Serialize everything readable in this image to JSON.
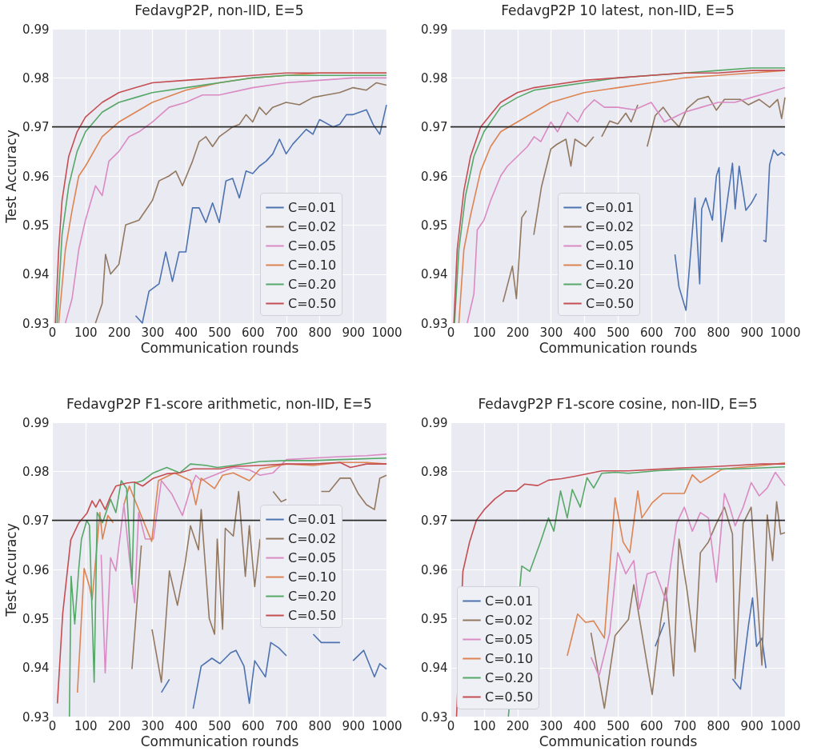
{
  "chart_data": [
    {
      "type": "line",
      "title": "FedavgP2P, non-IID, E=5",
      "xlabel": "Communication rounds",
      "ylabel": "Test Accuracy",
      "xlim": [
        0,
        1000
      ],
      "ylim": [
        0.93,
        0.99
      ],
      "xticks": [
        0,
        100,
        200,
        300,
        400,
        500,
        600,
        700,
        800,
        900,
        1000
      ],
      "yticks": [
        0.93,
        0.94,
        0.95,
        0.96,
        0.97,
        0.98,
        0.99
      ],
      "grid": true,
      "legend": "bottom right",
      "ref_lines": [
        {
          "axis": "y",
          "value": 0.97,
          "color": "#262626"
        }
      ],
      "series": [
        {
          "name": "C=0.01",
          "color": "#4c72b0",
          "x": [
            250,
            270,
            290,
            320,
            340,
            360,
            380,
            400,
            420,
            440,
            460,
            480,
            500,
            520,
            540,
            560,
            580,
            600,
            620,
            640,
            660,
            680,
            700,
            720,
            740,
            760,
            780,
            800,
            840,
            860,
            880,
            900,
            920,
            940,
            960,
            980,
            1000
          ],
          "values": [
            0.9315,
            0.93,
            0.9365,
            0.938,
            0.9445,
            0.9385,
            0.9445,
            0.9445,
            0.9535,
            0.9535,
            0.9505,
            0.9545,
            0.9505,
            0.959,
            0.9595,
            0.9555,
            0.961,
            0.9605,
            0.962,
            0.963,
            0.9645,
            0.9675,
            0.9645,
            0.9665,
            0.968,
            0.9695,
            0.9685,
            0.9715,
            0.97,
            0.9705,
            0.9725,
            0.9725,
            0.973,
            0.9735,
            0.9705,
            0.9685,
            0.9745
          ]
        },
        {
          "name": "C=0.02",
          "color": "#937860",
          "x": [
            130,
            150,
            160,
            175,
            200,
            220,
            260,
            280,
            300,
            320,
            350,
            370,
            390,
            420,
            440,
            460,
            480,
            500,
            520,
            540,
            560,
            580,
            600,
            620,
            640,
            660,
            700,
            740,
            780,
            820,
            860,
            900,
            940,
            970,
            1000
          ],
          "values": [
            0.93,
            0.934,
            0.944,
            0.94,
            0.942,
            0.95,
            0.951,
            0.953,
            0.955,
            0.959,
            0.96,
            0.961,
            0.958,
            0.963,
            0.967,
            0.968,
            0.966,
            0.968,
            0.969,
            0.97,
            0.9705,
            0.9725,
            0.971,
            0.974,
            0.9725,
            0.974,
            0.975,
            0.9745,
            0.976,
            0.9765,
            0.977,
            0.978,
            0.9775,
            0.979,
            0.9785
          ]
        },
        {
          "name": "C=0.05",
          "color": "#da8bc3",
          "x": [
            40,
            60,
            80,
            100,
            130,
            150,
            170,
            200,
            230,
            260,
            300,
            350,
            400,
            450,
            500,
            600,
            700,
            800,
            900,
            1000
          ],
          "values": [
            0.93,
            0.935,
            0.945,
            0.951,
            0.958,
            0.956,
            0.963,
            0.965,
            0.968,
            0.969,
            0.971,
            0.974,
            0.975,
            0.9765,
            0.9765,
            0.978,
            0.979,
            0.9795,
            0.98,
            0.98
          ]
        },
        {
          "name": "C=0.10",
          "color": "#dd8452",
          "x": [
            20,
            40,
            60,
            80,
            100,
            150,
            200,
            250,
            300,
            400,
            500,
            600,
            700,
            800,
            900,
            1000
          ],
          "values": [
            0.93,
            0.945,
            0.953,
            0.96,
            0.962,
            0.968,
            0.971,
            0.973,
            0.975,
            0.9775,
            0.979,
            0.98,
            0.9805,
            0.981,
            0.981,
            0.981
          ]
        },
        {
          "name": "C=0.20",
          "color": "#55a868",
          "x": [
            15,
            30,
            50,
            75,
            100,
            150,
            200,
            250,
            300,
            400,
            500,
            600,
            700,
            800,
            900,
            1000
          ],
          "values": [
            0.93,
            0.948,
            0.958,
            0.965,
            0.969,
            0.973,
            0.975,
            0.976,
            0.977,
            0.978,
            0.979,
            0.98,
            0.9805,
            0.9805,
            0.9805,
            0.9805
          ]
        },
        {
          "name": "C=0.50",
          "color": "#c44e52",
          "x": [
            10,
            20,
            30,
            50,
            75,
            100,
            150,
            200,
            250,
            300,
            400,
            500,
            600,
            700,
            800,
            900,
            1000
          ],
          "values": [
            0.93,
            0.945,
            0.955,
            0.964,
            0.969,
            0.972,
            0.975,
            0.977,
            0.978,
            0.979,
            0.9795,
            0.98,
            0.9805,
            0.981,
            0.981,
            0.981,
            0.981
          ]
        }
      ]
    },
    {
      "type": "line",
      "title": "FedavgP2P 10 latest, non-IID, E=5",
      "xlabel": "Communication rounds",
      "xlim": [
        0,
        1000
      ],
      "ylim": [
        0.93,
        0.99
      ],
      "xticks": [
        0,
        100,
        200,
        300,
        400,
        500,
        600,
        700,
        800,
        900,
        1000
      ],
      "yticks": [
        0.93,
        0.94,
        0.95,
        0.96,
        0.97,
        0.98,
        0.99
      ],
      "grid": true,
      "legend": "bottom",
      "ref_lines": [
        {
          "axis": "y",
          "value": 0.97,
          "color": "#262626"
        }
      ],
      "series": [
        {
          "name": "C=0.01",
          "color": "#4c72b0",
          "x": [
            671,
            683,
            704,
            731,
            745,
            751,
            763,
            783,
            795,
            803,
            811,
            843,
            851,
            863,
            883,
            899,
            915,
            923,
            935,
            943,
            954,
            966,
            978,
            990,
            1000
          ],
          "values": [
            0.944,
            0.9374,
            0.9326,
            0.9555,
            0.938,
            0.9533,
            0.9555,
            0.951,
            0.96,
            0.9617,
            0.9466,
            0.9626,
            0.9533,
            0.962,
            0.953,
            0.9544,
            0.9564,
            null,
            0.9469,
            0.9466,
            0.9623,
            0.9653,
            0.9642,
            0.9648,
            0.9642
          ]
        },
        {
          "name": "C=0.02",
          "color": "#937860",
          "x": [
            157,
            185,
            197,
            213,
            227,
            237,
            249,
            272,
            300,
            317,
            345,
            360,
            372,
            404,
            428,
            436,
            452,
            476,
            500,
            524,
            540,
            560,
            572,
            588,
            612,
            636,
            660,
            683,
            707,
            739,
            771,
            795,
            819,
            867,
            891,
            923,
            954,
            978,
            990,
            1000
          ],
          "values": [
            0.9343,
            0.9416,
            0.935,
            0.9515,
            0.9529,
            null,
            0.948,
            0.9578,
            0.9655,
            0.9664,
            0.9675,
            0.962,
            0.9675,
            0.966,
            0.968,
            null,
            0.968,
            0.9712,
            0.9706,
            0.9728,
            0.971,
            0.9745,
            null,
            0.966,
            0.9723,
            0.974,
            0.9717,
            0.97,
            0.9737,
            0.9756,
            0.9762,
            0.9734,
            0.9756,
            0.9756,
            0.9745,
            0.9756,
            0.974,
            0.9756,
            0.9717,
            0.976
          ]
        },
        {
          "name": "C=0.05",
          "color": "#da8bc3",
          "x": [
            50,
            70,
            80,
            100,
            120,
            150,
            170,
            200,
            230,
            250,
            270,
            300,
            320,
            350,
            380,
            400,
            430,
            460,
            500,
            550,
            600,
            640,
            700,
            750,
            800,
            850,
            900,
            950,
            1000
          ],
          "values": [
            0.93,
            0.936,
            0.949,
            0.951,
            0.955,
            0.96,
            0.962,
            0.964,
            0.966,
            0.968,
            0.967,
            0.971,
            0.969,
            0.973,
            0.971,
            0.9735,
            0.9755,
            0.974,
            0.974,
            0.9735,
            0.975,
            0.971,
            0.973,
            0.974,
            0.975,
            0.975,
            0.976,
            0.977,
            0.978
          ]
        },
        {
          "name": "C=0.10",
          "color": "#dd8452",
          "x": [
            25,
            40,
            60,
            90,
            120,
            150,
            200,
            250,
            300,
            400,
            500,
            600,
            700,
            800,
            900,
            1000
          ],
          "values": [
            0.93,
            0.945,
            0.952,
            0.961,
            0.966,
            0.969,
            0.971,
            0.973,
            0.975,
            0.977,
            0.978,
            0.979,
            0.98,
            0.9805,
            0.981,
            0.9815
          ]
        },
        {
          "name": "C=0.20",
          "color": "#55a868",
          "x": [
            12,
            25,
            45,
            70,
            100,
            150,
            200,
            250,
            300,
            400,
            500,
            600,
            700,
            800,
            900,
            1000
          ],
          "values": [
            0.93,
            0.945,
            0.956,
            0.964,
            0.969,
            0.974,
            0.976,
            0.9775,
            0.978,
            0.979,
            0.98,
            0.9805,
            0.981,
            0.9815,
            0.982,
            0.982
          ]
        },
        {
          "name": "C=0.50",
          "color": "#c44e52",
          "x": [
            10,
            20,
            40,
            60,
            90,
            120,
            150,
            200,
            250,
            300,
            400,
            500,
            600,
            700,
            800,
            900,
            1000
          ],
          "values": [
            0.93,
            0.945,
            0.957,
            0.964,
            0.97,
            0.9725,
            0.975,
            0.977,
            0.978,
            0.9785,
            0.9795,
            0.98,
            0.9805,
            0.981,
            0.981,
            0.9815,
            0.9815
          ]
        }
      ]
    },
    {
      "type": "line",
      "title": "FedavgP2P F1-score arithmetic, non-IID, E=5",
      "xlabel": "Communication rounds",
      "ylabel": "Test Accuracy",
      "xlim": [
        0,
        1000
      ],
      "ylim": [
        0.93,
        0.99
      ],
      "xticks": [
        0,
        100,
        200,
        300,
        400,
        500,
        600,
        700,
        800,
        900,
        1000
      ],
      "yticks": [
        0.93,
        0.94,
        0.95,
        0.96,
        0.97,
        0.98,
        0.99
      ],
      "grid": true,
      "legend": "right",
      "ref_lines": [
        {
          "axis": "y",
          "value": 0.97,
          "color": "#262626"
        }
      ],
      "series": [
        {
          "name": "C=0.01",
          "color": "#4c72b0",
          "x": [
            327,
            351,
            380,
            422,
            446,
            478,
            502,
            534,
            550,
            574,
            590,
            606,
            638,
            654,
            678,
            701,
            725,
            765,
            781,
            805,
            861,
            877,
            900,
            932,
            964,
            980,
            1000
          ],
          "values": [
            0.9349,
            0.9376,
            null,
            0.9316,
            0.9403,
            0.9419,
            0.9408,
            0.943,
            0.9435,
            0.9403,
            0.9327,
            0.9414,
            0.9381,
            0.9451,
            0.944,
            0.9424,
            null,
            null,
            0.9468,
            0.9451,
            0.9451,
            null,
            0.9414,
            0.9435,
            0.9381,
            0.9408,
            0.9397
          ]
        },
        {
          "name": "C=0.02",
          "color": "#937860",
          "x": [
            239,
            267,
            279,
            299,
            327,
            351,
            375,
            398,
            414,
            438,
            446,
            470,
            486,
            494,
            510,
            518,
            542,
            558,
            578,
            590,
            606,
            622,
            650,
            661,
            685,
            701,
            717,
            805,
            829,
            861,
            892,
            916,
            940,
            964,
            980,
            1000
          ],
          "values": [
            0.9397,
            0.9649,
            null,
            0.9478,
            0.937,
            0.9597,
            0.9527,
            0.9613,
            0.9689,
            0.964,
            0.9722,
            0.95,
            0.9468,
            0.9662,
            0.9478,
            0.9684,
            0.9668,
            0.9759,
            0.9586,
            0.9689,
            0.9565,
            0.9662,
            null,
            0.9759,
            0.9738,
            0.9743,
            null,
            0.9759,
            0.9759,
            0.9786,
            0.9786,
            0.9754,
            0.9732,
            0.9722,
            0.9786,
            0.9792
          ]
        },
        {
          "name": "C=0.05",
          "color": "#da8bc3",
          "x": [
            147,
            159,
            175,
            191,
            215,
            231,
            247,
            259,
            279,
            303,
            327,
            358,
            390,
            414,
            430,
            446,
            462,
            502,
            542,
            590,
            622,
            661,
            701,
            781,
            861,
            940,
            1000
          ],
          "values": [
            0.963,
            0.9389,
            0.9624,
            0.9597,
            0.9732,
            0.9624,
            0.9532,
            0.9716,
            0.9662,
            0.9662,
            0.9781,
            0.9754,
            0.971,
            0.9765,
            0.9792,
            0.9781,
            0.9786,
            0.9797,
            0.9808,
            0.9803,
            0.9792,
            0.9797,
            0.9824,
            0.9827,
            0.983,
            0.9832,
            0.9835
          ]
        },
        {
          "name": "C=0.10",
          "color": "#dd8452",
          "x": [
            76,
            96,
            112,
            120,
            143,
            151,
            167,
            183,
            199,
            215,
            231,
            298,
            318,
            366,
            414,
            430,
            446,
            486,
            510,
            542,
            590,
            622,
            701,
            781,
            861,
            940,
            1000
          ],
          "values": [
            0.9349,
            0.9602,
            0.9565,
            0.9538,
            0.9716,
            0.9662,
            0.971,
            0.9695,
            null,
            0.9732,
            0.977,
            0.9657,
            0.9781,
            0.9797,
            0.9781,
            0.9732,
            0.9786,
            0.9765,
            0.9792,
            0.9797,
            0.9781,
            0.9805,
            0.9815,
            0.9812,
            0.9818,
            0.9818,
            0.9815
          ]
        },
        {
          "name": "C=0.20",
          "color": "#55a868",
          "x": [
            52,
            57,
            68,
            80,
            88,
            104,
            112,
            126,
            135,
            151,
            175,
            191,
            207,
            223,
            239,
            247,
            271,
            303,
            343,
            382,
            414,
            462,
            494,
            542,
            622,
            701,
            781,
            861,
            1000
          ],
          "values": [
            0.93,
            0.9586,
            0.9489,
            0.9602,
            0.9662,
            0.97,
            0.969,
            0.937,
            0.9716,
            0.9695,
            0.9743,
            0.9716,
            0.9781,
            0.9765,
            0.957,
            0.9776,
            0.9781,
            0.9797,
            0.9808,
            0.9797,
            0.9815,
            0.9812,
            0.9808,
            0.9812,
            0.982,
            0.9822,
            0.9822,
            0.9824,
            0.9827
          ]
        },
        {
          "name": "C=0.50",
          "color": "#c44e52",
          "x": [
            16,
            32,
            56,
            80,
            104,
            120,
            131,
            143,
            159,
            175,
            191,
            223,
            247,
            271,
            303,
            343,
            382,
            422,
            462,
            502,
            542,
            622,
            701,
            781,
            861,
            892,
            940,
            1000
          ],
          "values": [
            0.9327,
            0.951,
            0.966,
            0.9695,
            0.9714,
            0.974,
            0.9727,
            0.9743,
            0.9722,
            0.9749,
            0.977,
            0.9776,
            0.9778,
            0.977,
            0.9786,
            0.9795,
            0.9797,
            0.9805,
            0.9805,
            0.9805,
            0.981,
            0.9812,
            0.9815,
            0.9815,
            0.9818,
            0.9808,
            0.9815,
            0.9815
          ]
        }
      ]
    },
    {
      "type": "line",
      "title": "FedavgP2P F1-score cosine, non-IID, E=5",
      "xlabel": "Communication rounds",
      "xlim": [
        0,
        1000
      ],
      "ylim": [
        0.93,
        0.99
      ],
      "xticks": [
        0,
        100,
        200,
        300,
        400,
        500,
        600,
        700,
        800,
        900,
        1000
      ],
      "yticks": [
        0.93,
        0.94,
        0.95,
        0.96,
        0.97,
        0.98,
        0.99
      ],
      "grid": true,
      "legend": "bottom left",
      "ref_lines": [
        {
          "axis": "y",
          "value": 0.97,
          "color": "#262626"
        }
      ],
      "series": [
        {
          "name": "C=0.01",
          "color": "#4c72b0",
          "x": [
            612,
            640,
            655,
            800,
            843,
            867,
            891,
            903,
            915,
            931,
            943
          ],
          "values": [
            0.9443,
            0.9492,
            null,
            null,
            0.9377,
            0.9356,
            0.9487,
            0.9542,
            0.9443,
            0.946,
            0.9399
          ]
        },
        {
          "name": "C=0.02",
          "color": "#937860",
          "x": [
            420,
            460,
            492,
            532,
            548,
            572,
            603,
            628,
            644,
            667,
            683,
            707,
            731,
            747,
            771,
            795,
            819,
            843,
            851,
            875,
            899,
            931,
            947,
            963,
            975,
            987,
            1000
          ],
          "values": [
            0.9471,
            0.9317,
            0.9465,
            0.9498,
            0.9569,
            0.9471,
            0.9345,
            0.9492,
            0.9563,
            0.9383,
            0.9662,
            0.9558,
            0.9432,
            0.9634,
            0.9656,
            0.9694,
            0.9727,
            0.9672,
            0.9377,
            0.9694,
            0.9727,
            0.9405,
            0.9711,
            0.9618,
            0.9738,
            0.9672,
            0.9675
          ]
        },
        {
          "name": "C=0.05",
          "color": "#da8bc3",
          "x": [
            420,
            444,
            476,
            500,
            524,
            548,
            564,
            588,
            612,
            644,
            660,
            676,
            699,
            723,
            747,
            771,
            795,
            819,
            835,
            851,
            875,
            899,
            923,
            947,
            971,
            1000
          ],
          "values": [
            0.9421,
            0.9383,
            0.9471,
            0.9634,
            0.9591,
            0.9618,
            0.9519,
            0.9591,
            0.9596,
            0.9536,
            0.9618,
            0.9694,
            0.9727,
            0.9678,
            0.9716,
            0.9705,
            0.9574,
            0.9755,
            0.9727,
            0.9689,
            0.9727,
            0.9777,
            0.975,
            0.9766,
            0.9798,
            0.9771
          ]
        },
        {
          "name": "C=0.10",
          "color": "#dd8452",
          "x": [
            349,
            380,
            404,
            428,
            460,
            492,
            516,
            536,
            560,
            572,
            603,
            635,
            667,
            699,
            723,
            747,
            771,
            811,
            851,
            931,
            1000
          ],
          "values": [
            0.9424,
            0.9509,
            0.9492,
            0.9495,
            0.946,
            0.9746,
            0.9656,
            0.9634,
            0.976,
            0.9705,
            0.9736,
            0.9755,
            0.9755,
            0.9755,
            0.9793,
            0.9777,
            0.9787,
            0.9804,
            0.9807,
            0.9812,
            0.9817
          ]
        },
        {
          "name": "C=0.20",
          "color": "#55a868",
          "x": [
            173,
            213,
            237,
            269,
            293,
            309,
            329,
            349,
            364,
            388,
            408,
            428,
            452,
            492,
            532,
            612,
            691,
            771,
            851,
            931,
            1000
          ],
          "values": [
            0.93,
            0.9607,
            0.9596,
            0.9656,
            0.9705,
            0.9678,
            0.976,
            0.9705,
            0.9763,
            0.9727,
            0.9787,
            0.9766,
            0.9796,
            0.9798,
            0.9796,
            0.9801,
            0.9804,
            0.9805,
            0.9805,
            0.9807,
            0.9809
          ]
        },
        {
          "name": "C=0.50",
          "color": "#c44e52",
          "x": [
            18,
            37,
            57,
            77,
            101,
            133,
            165,
            197,
            221,
            261,
            293,
            332,
            372,
            452,
            532,
            612,
            691,
            771,
            851,
            931,
            1000
          ],
          "values": [
            0.93,
            0.9596,
            0.9656,
            0.97,
            0.9722,
            0.9744,
            0.976,
            0.976,
            0.9774,
            0.9771,
            0.9782,
            0.9785,
            0.979,
            0.9801,
            0.9801,
            0.9804,
            0.9807,
            0.9809,
            0.9812,
            0.9815,
            0.9815
          ]
        }
      ]
    }
  ]
}
